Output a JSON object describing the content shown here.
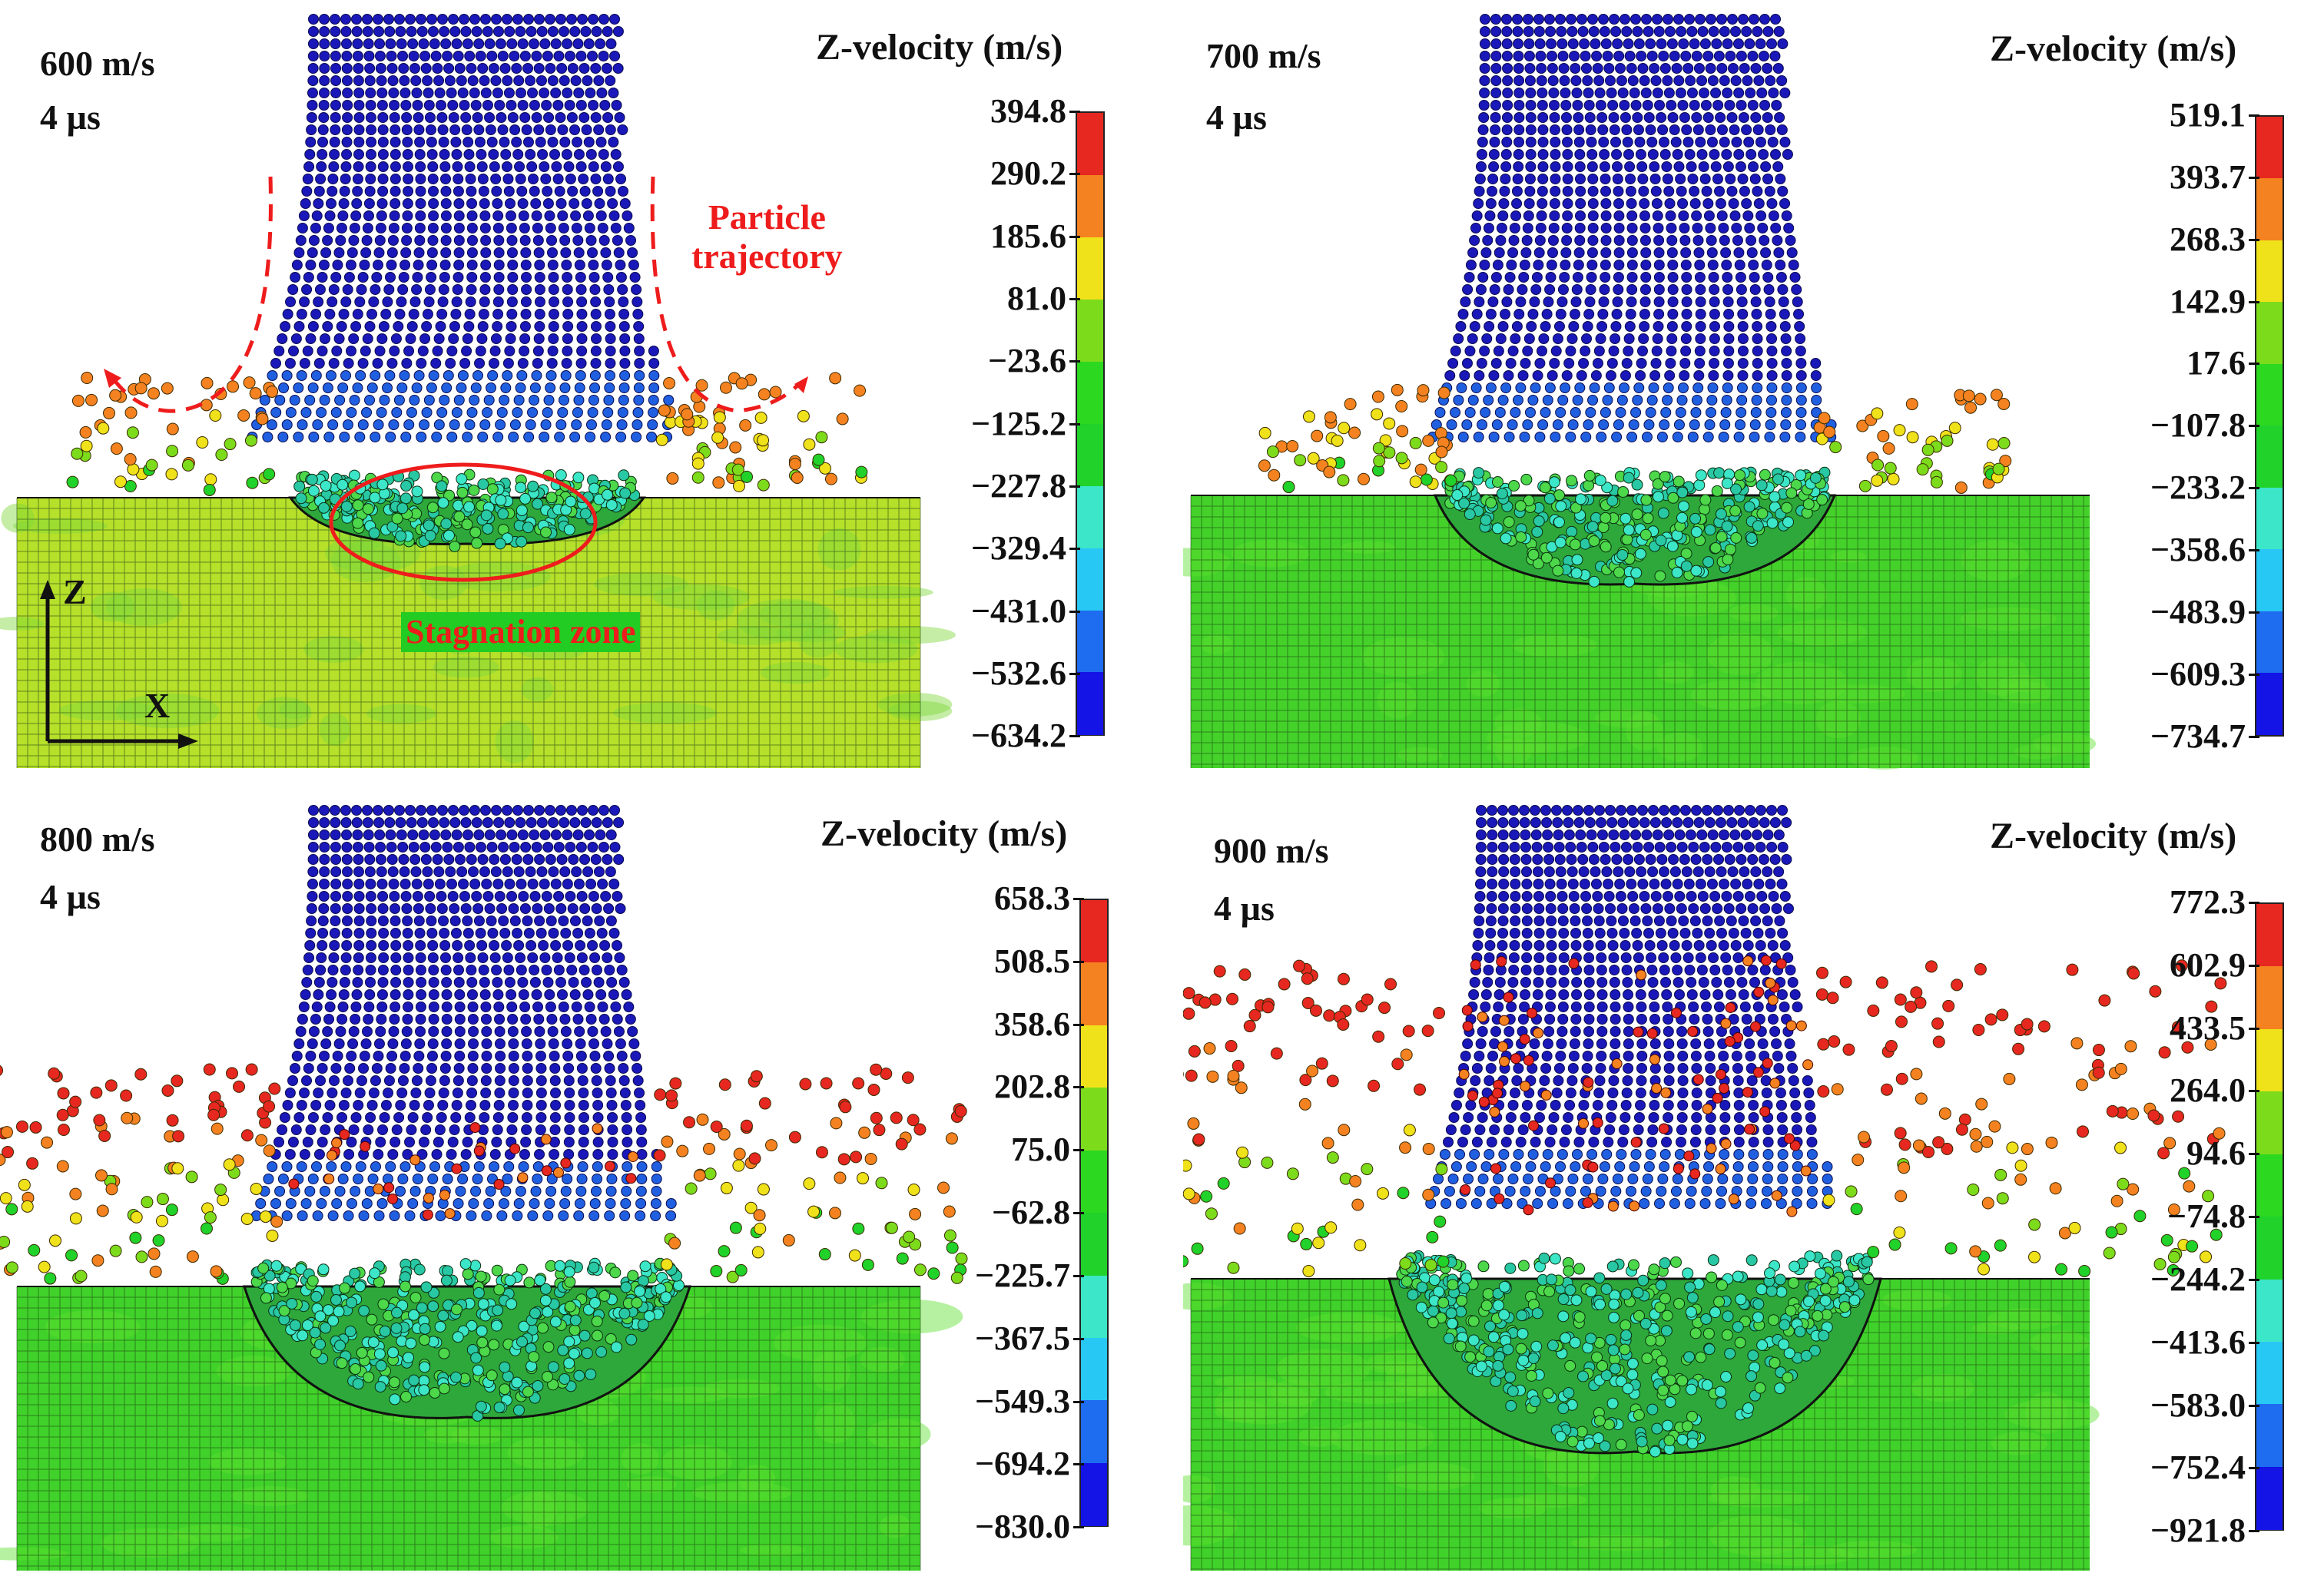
{
  "colormap": [
    "#1414e6",
    "#1e6cf0",
    "#28c8f5",
    "#3ce6c8",
    "#20d22a",
    "#2cd820",
    "#7cdc1c",
    "#f0e21a",
    "#f58220",
    "#e62820"
  ],
  "panels": [
    {
      "speed": "600 m/s",
      "time": "4 µs",
      "colorbar_title": "Z-velocity (m/s)",
      "ticks": [
        "394.8",
        "290.2",
        "185.6",
        "81.0",
        "−23.6",
        "−125.2",
        "−227.8",
        "−329.4",
        "−431.0",
        "−532.6",
        "−634.2"
      ],
      "substrate_color": "#b6e02a",
      "splash_level": 0.3
    },
    {
      "speed": "700 m/s",
      "time": "4 µs",
      "colorbar_title": "Z-velocity (m/s)",
      "ticks": [
        "519.1",
        "393.7",
        "268.3",
        "142.9",
        "17.6",
        "−107.8",
        "−233.2",
        "−358.6",
        "−483.9",
        "−609.3",
        "−734.7"
      ],
      "substrate_color": "#44d22a",
      "splash_level": 0.25
    },
    {
      "speed": "800 m/s",
      "time": "4 µs",
      "colorbar_title": "Z-velocity (m/s)",
      "ticks": [
        "658.3",
        "508.5",
        "358.6",
        "202.8",
        "75.0",
        "−62.8",
        "−225.7",
        "−367.5",
        "−549.3",
        "−694.2",
        "−830.0"
      ],
      "substrate_color": "#40d22a",
      "splash_level": 0.65
    },
    {
      "speed": "900 m/s",
      "time": "4 µs",
      "colorbar_title": "Z-velocity (m/s)",
      "ticks": [
        "772.3",
        "602.9",
        "433.5",
        "264.0",
        "94.6",
        "−74.8",
        "−244.2",
        "−413.6",
        "−583.0",
        "−752.4",
        "−921.8"
      ],
      "substrate_color": "#40d22a",
      "splash_level": 1.0
    }
  ],
  "annotations": {
    "trajectory": "Particle\ntrajectory",
    "stagnation": "Stagnation zone",
    "axis_z": "Z",
    "axis_x": "X"
  }
}
